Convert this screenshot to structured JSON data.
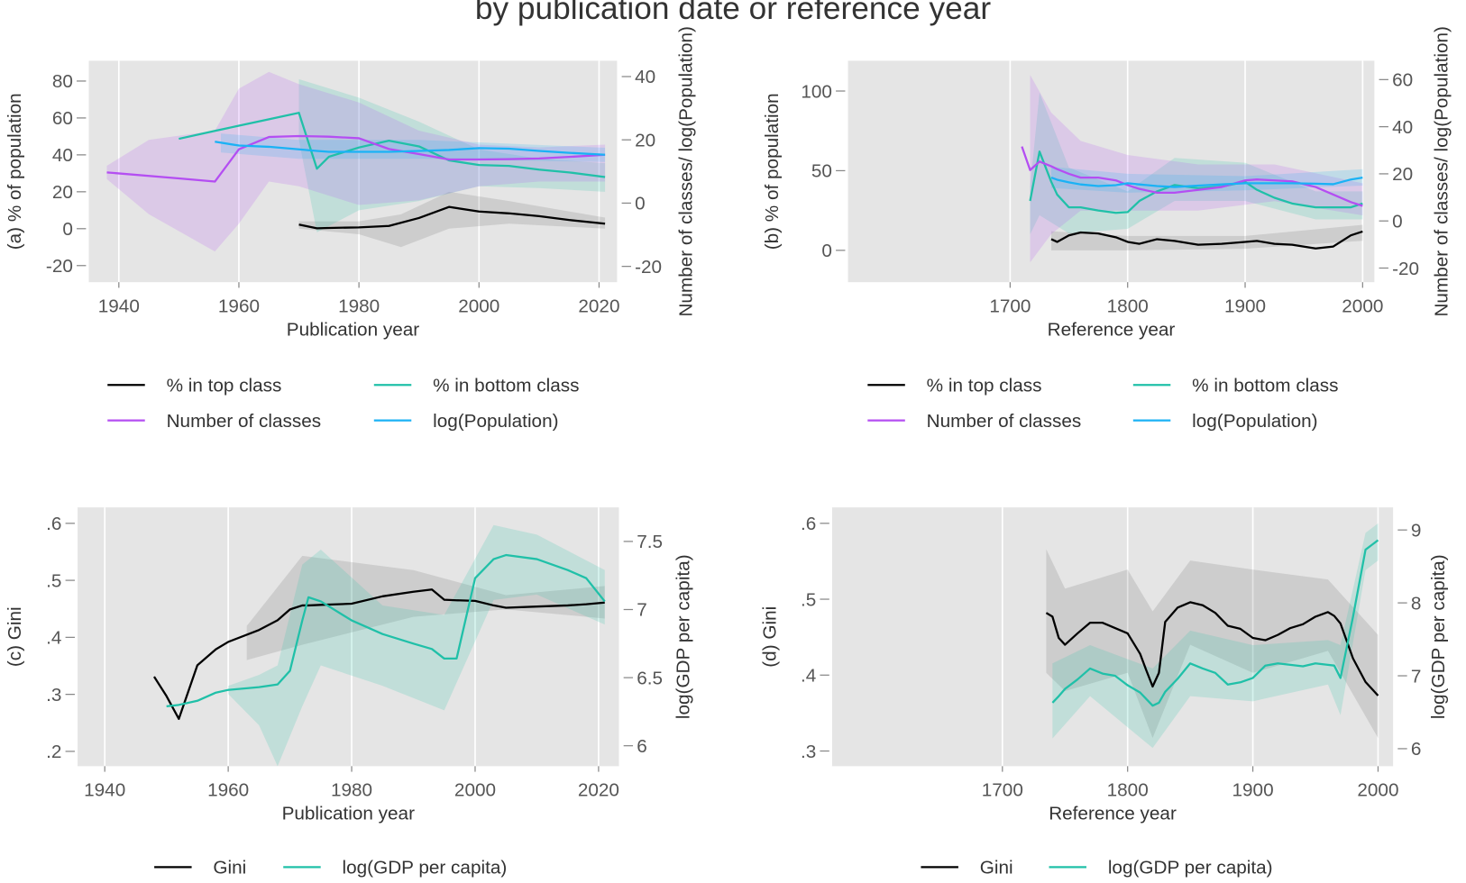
{
  "title": "by publication date or reference year",
  "chart_data": [
    {
      "type": "line",
      "x_label": "Publication year",
      "y_label": "(a) % of population",
      "y2_label": "Number of classes/ log(Population)",
      "x": [
        1938,
        1950,
        1956,
        1960,
        1965,
        1970,
        1973,
        1975,
        1980,
        1985,
        1990,
        1995,
        2000,
        2005,
        2010,
        2015,
        2021
      ],
      "xlim": [
        1935,
        2023
      ],
      "xticks": [
        1940,
        1960,
        1980,
        2000,
        2020
      ],
      "ylim": [
        -29,
        91
      ],
      "yticks": [
        -20,
        0,
        20,
        40,
        60,
        80
      ],
      "y2lim": [
        -25,
        45
      ],
      "y2ticks": [
        -20,
        0,
        20,
        40
      ],
      "grid": true,
      "series": [
        {
          "name": "% in top class",
          "color": "#000000",
          "values": [
            null,
            null,
            null,
            null,
            null,
            2.2,
            0.2,
            0.4,
            0.7,
            1.5,
            5.8,
            11.8,
            9.3,
            8.3,
            6.8,
            4.7,
            2.7
          ],
          "band": {
            "x": [
              1970,
              1980,
              1987,
              1995,
              2005,
              2021
            ],
            "lower": [
              0,
              -3,
              -10,
              0,
              2.7,
              0
            ],
            "upper": [
              4,
              4,
              7.8,
              20,
              15,
              6
            ]
          }
        },
        {
          "name": "% in bottom class",
          "color": "#20c0a8",
          "values": [
            null,
            48.7,
            53,
            55.8,
            59.3,
            62.8,
            32.5,
            39,
            44,
            47.7,
            44.6,
            37,
            34.5,
            34,
            32,
            30.5,
            28
          ],
          "band": {
            "x": [
              1970,
              1973,
              1980,
              1990,
              2000,
              2010,
              2021
            ],
            "lower": [
              48,
              -2,
              10,
              15,
              23,
              22,
              20
            ],
            "upper": [
              81,
              78,
              71,
              58,
              43,
              38,
              35.5
            ]
          }
        },
        {
          "name": "Number of classes",
          "color": "#b44ef2",
          "axis": "y2",
          "values": [
            9.7,
            7.8,
            6.8,
            17,
            20.9,
            21.2,
            21.1,
            21,
            20.5,
            17.1,
            15.5,
            13.8,
            13.8,
            13.9,
            14.1,
            14.6,
            15.3
          ],
          "band": {
            "x": [
              1938,
              1945,
              1956,
              1960,
              1965,
              1970,
              1980,
              1990,
              2000,
              2010,
              2021
            ],
            "lower": [
              7.6,
              -3.5,
              -15.3,
              -6.5,
              6.8,
              5.3,
              -0.6,
              0.9,
              5.3,
              6.8,
              6.8
            ],
            "upper": [
              11.8,
              20,
              22.9,
              36.2,
              41.5,
              37.6,
              31.8,
              22.9,
              18.5,
              17.6,
              18.5
            ]
          }
        },
        {
          "name": "log(Population)",
          "color": "#1ab2f5",
          "axis": "y2",
          "values": [
            null,
            null,
            19.4,
            18.2,
            17.8,
            17,
            16.5,
            16.2,
            16.2,
            16.2,
            16.5,
            16.8,
            17.4,
            17.2,
            16.5,
            15.9,
            15.3
          ],
          "band": {
            "x": [
              1957,
              1970,
              1990,
              2021
            ],
            "lower": [
              16,
              14,
              14,
              13
            ],
            "upper": [
              22,
              20,
              20,
              17.5
            ]
          }
        }
      ]
    },
    {
      "type": "line",
      "x_label": "Reference year",
      "y_label": "(b) % of population",
      "y2_label": "Number of classes/ log(Population)",
      "x": [
        1710,
        1717,
        1725,
        1735,
        1740,
        1750,
        1760,
        1775,
        1790,
        1800,
        1810,
        1825,
        1840,
        1860,
        1880,
        1900,
        1910,
        1925,
        1940,
        1960,
        1975,
        1990,
        2000
      ],
      "xlim": [
        1562,
        2010
      ],
      "xticks": [
        1700,
        1800,
        1900,
        2000
      ],
      "ylim": [
        -20,
        119
      ],
      "yticks": [
        0,
        50,
        100
      ],
      "y2lim": [
        -26,
        68
      ],
      "y2ticks": [
        -20,
        0,
        20,
        40,
        60
      ],
      "grid": true,
      "series": [
        {
          "name": "% in top class",
          "color": "#000000",
          "values": [
            null,
            null,
            null,
            7,
            5.3,
            9.4,
            11.2,
            10.6,
            8.2,
            5.3,
            4.1,
            7,
            5.9,
            3.5,
            4.1,
            5.3,
            5.9,
            4.1,
            3.5,
            1.2,
            2.4,
            9.4,
            11.8
          ],
          "band": {
            "x": [
              1735,
              1800,
              1900,
              2000
            ],
            "lower": [
              0,
              0,
              1,
              6
            ],
            "upper": [
              12,
              9,
              9,
              16
            ]
          }
        },
        {
          "name": "% in bottom class",
          "color": "#20c0a8",
          "values": [
            null,
            31,
            62,
            43,
            35,
            27,
            27,
            25,
            23.5,
            24,
            31,
            37,
            41,
            39,
            40,
            43,
            38,
            33,
            29.4,
            27,
            27,
            27,
            29.4
          ],
          "band": {
            "x": [
              1717,
              1725,
              1750,
              1800,
              1840,
              1900,
              1960,
              2000
            ],
            "lower": [
              10,
              22,
              10.6,
              13.5,
              31,
              31,
              19.4,
              19.4
            ],
            "upper": [
              40,
              99,
              52,
              37,
              58,
              55,
              37,
              37
            ]
          }
        },
        {
          "name": "Number of classes",
          "color": "#b44ef2",
          "axis": "y2",
          "values": [
            31.6,
            21.6,
            25.2,
            23.2,
            22,
            20,
            18.4,
            18.4,
            17.2,
            15.2,
            13.6,
            12,
            12,
            13.2,
            14.4,
            17.2,
            17.6,
            17.2,
            16.8,
            14.4,
            11.2,
            8,
            6.4
          ],
          "band": {
            "x": [
              1717,
              1735,
              1760,
              1800,
              1860,
              1925,
              2000
            ],
            "lower": [
              -17.6,
              -5.6,
              4.4,
              4.4,
              4.4,
              8.4,
              2.4
            ],
            "upper": [
              62,
              46,
              34,
              28,
              24,
              24,
              16
            ]
          }
        },
        {
          "name": "log(Population)",
          "color": "#1ab2f5",
          "axis": "y2",
          "values": [
            null,
            null,
            null,
            18.4,
            17.5,
            16.4,
            15.5,
            14.8,
            15.2,
            16,
            15.5,
            14.8,
            14.4,
            15,
            15.5,
            16,
            16,
            16,
            16,
            15.8,
            15.6,
            17.6,
            18.4
          ],
          "band": {
            "x": [
              1735,
              1800,
              1900,
              2000
            ],
            "lower": [
              14,
              12,
              13,
              15
            ],
            "upper": [
              23,
              20,
              19,
              22
            ]
          }
        }
      ]
    },
    {
      "type": "line",
      "x_label": "Publication year",
      "y_label": "(c) Gini",
      "y2_label": "log(GDP per capita)",
      "x": [
        1948,
        1950,
        1952,
        1955,
        1958,
        1960,
        1965,
        1968,
        1970,
        1972,
        1973,
        1975,
        1980,
        1985,
        1990,
        1993,
        1995,
        1997,
        2000,
        2003,
        2005,
        2010,
        2015,
        2018,
        2021
      ],
      "xlim": [
        1935.6,
        2023.3
      ],
      "xticks": [
        1940,
        1960,
        1980,
        2000,
        2020
      ],
      "ylim": [
        0.174,
        0.628
      ],
      "yticks": [
        {
          "value": 0.2,
          "label": ".2"
        },
        {
          "value": 0.3,
          "label": ".3"
        },
        {
          "value": 0.4,
          "label": ".4"
        },
        {
          "value": 0.5,
          "label": ".5"
        },
        {
          "value": 0.6,
          "label": ".6"
        }
      ],
      "y2lim": [
        5.85,
        7.75
      ],
      "y2ticks": [
        6,
        6.5,
        7,
        7.5
      ],
      "grid": true,
      "series": [
        {
          "name": "Gini",
          "color": "#000000",
          "values": [
            0.331,
            0.297,
            0.257,
            0.351,
            0.379,
            0.392,
            0.413,
            0.43,
            0.449,
            0.456,
            0.456,
            0.457,
            0.459,
            0.472,
            0.48,
            0.484,
            0.466,
            0.465,
            0.464,
            0.456,
            0.452,
            0.454,
            0.456,
            0.458,
            0.461
          ],
          "band": {
            "x": [
              1963,
              1972,
              1990,
              2005,
              2021
            ],
            "lower": [
              0.36,
              0.387,
              0.436,
              0.449,
              0.433
            ],
            "upper": [
              0.42,
              0.543,
              0.518,
              0.474,
              0.49
            ]
          }
        },
        {
          "name": "log(GDP per capita)",
          "color": "#20c0a8",
          "axis": "y2",
          "values": [
            null,
            6.29,
            6.3,
            6.33,
            6.39,
            6.41,
            6.43,
            6.45,
            6.55,
            6.92,
            7.09,
            7.06,
            6.92,
            6.82,
            6.75,
            6.71,
            6.64,
            6.64,
            7.23,
            7.37,
            7.4,
            7.37,
            7.29,
            7.23,
            7.06
          ],
          "band": {
            "x": [
              1960,
              1965,
              1968,
              1972,
              1975,
              1985,
              1995,
              2003,
              2010,
              2021
            ],
            "lower": [
              6.38,
              6.15,
              5.85,
              6.29,
              6.59,
              6.44,
              6.26,
              7.07,
              7.11,
              6.89
            ],
            "upper": [
              6.44,
              6.52,
              6.59,
              7.33,
              7.44,
              7.03,
              6.96,
              7.62,
              7.55,
              7.29
            ]
          }
        }
      ]
    },
    {
      "type": "line",
      "x_label": "Reference year",
      "y_label": "(d) Gini",
      "y2_label": "log(GDP per capita)",
      "x": [
        1735,
        1740,
        1745,
        1750,
        1760,
        1770,
        1780,
        1790,
        1800,
        1810,
        1815,
        1820,
        1825,
        1830,
        1840,
        1850,
        1860,
        1870,
        1880,
        1890,
        1900,
        1910,
        1920,
        1930,
        1940,
        1950,
        1960,
        1965,
        1970,
        1980,
        1990,
        2000
      ],
      "xlim": [
        1564,
        2012
      ],
      "xticks": [
        1700,
        1800,
        1900,
        2000
      ],
      "ylim": [
        0.28,
        0.621
      ],
      "yticks": [
        {
          "value": 0.3,
          "label": ".3"
        },
        {
          "value": 0.4,
          "label": ".4"
        },
        {
          "value": 0.5,
          "label": ".5"
        },
        {
          "value": 0.6,
          "label": ".6"
        }
      ],
      "y2lim": [
        5.76,
        9.31
      ],
      "y2ticks": [
        6,
        7,
        8,
        9
      ],
      "grid": true,
      "series": [
        {
          "name": "Gini",
          "color": "#000000",
          "values": [
            0.482,
            0.477,
            0.449,
            0.44,
            0.455,
            0.469,
            0.469,
            0.462,
            0.455,
            0.428,
            0.406,
            0.385,
            0.403,
            0.47,
            0.489,
            0.496,
            0.492,
            0.482,
            0.465,
            0.461,
            0.449,
            0.446,
            0.453,
            0.462,
            0.467,
            0.477,
            0.483,
            0.478,
            0.468,
            0.422,
            0.391,
            0.373
          ],
          "band": {
            "x": [
              1735,
              1750,
              1800,
              1820,
              1850,
              1900,
              1960,
              2000
            ],
            "lower": [
              0.403,
              0.379,
              0.403,
              0.317,
              0.44,
              0.403,
              0.432,
              0.317
            ],
            "upper": [
              0.566,
              0.514,
              0.539,
              0.484,
              0.551,
              0.539,
              0.526,
              0.453
            ]
          }
        },
        {
          "name": "log(GDP per capita)",
          "color": "#20c0a8",
          "axis": "y2",
          "values": [
            null,
            6.63,
            6.72,
            6.82,
            6.95,
            7.1,
            7.03,
            7,
            6.87,
            6.77,
            6.68,
            6.59,
            6.63,
            6.78,
            6.96,
            7.17,
            7.1,
            7.04,
            6.88,
            6.91,
            6.97,
            7.14,
            7.17,
            7.15,
            7.13,
            7.17,
            7.15,
            7.14,
            6.97,
            7.81,
            8.73,
            8.86
          ],
          "band": {
            "x": [
              1740,
              1770,
              1820,
              1850,
              1900,
              1960,
              1970,
              1990,
              2000
            ],
            "lower": [
              6.14,
              6.72,
              6.01,
              6.72,
              6.65,
              6.88,
              6.46,
              8.45,
              8.58
            ],
            "upper": [
              7.17,
              7.42,
              7.1,
              7.62,
              7.42,
              7.49,
              7.42,
              8.96,
              9.09
            ]
          }
        }
      ]
    }
  ]
}
